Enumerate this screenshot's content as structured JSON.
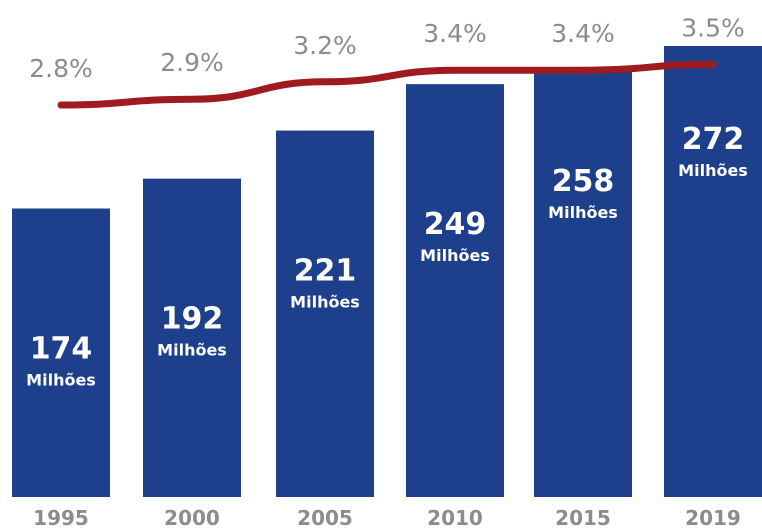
{
  "chart_data": {
    "type": "bar",
    "categories": [
      "1995",
      "2000",
      "2005",
      "2010",
      "2015",
      "2019"
    ],
    "series": [
      {
        "type": "bar",
        "values": [
          174,
          192,
          221,
          249,
          258,
          272
        ],
        "value_labels": [
          "174",
          "192",
          "221",
          "249",
          "258",
          "272"
        ],
        "unit_label": "Milhões",
        "color": "#1d3f8c"
      },
      {
        "type": "line",
        "values": [
          2.8,
          2.9,
          3.2,
          3.4,
          3.4,
          3.5
        ],
        "value_labels": [
          "2.8%",
          "2.9%",
          "3.2%",
          "3.4%",
          "3.4%",
          "3.5%"
        ],
        "color": "#a01b1f"
      }
    ],
    "title": "",
    "xlabel": "",
    "ylabel": "",
    "grid": false,
    "legend": "none"
  }
}
